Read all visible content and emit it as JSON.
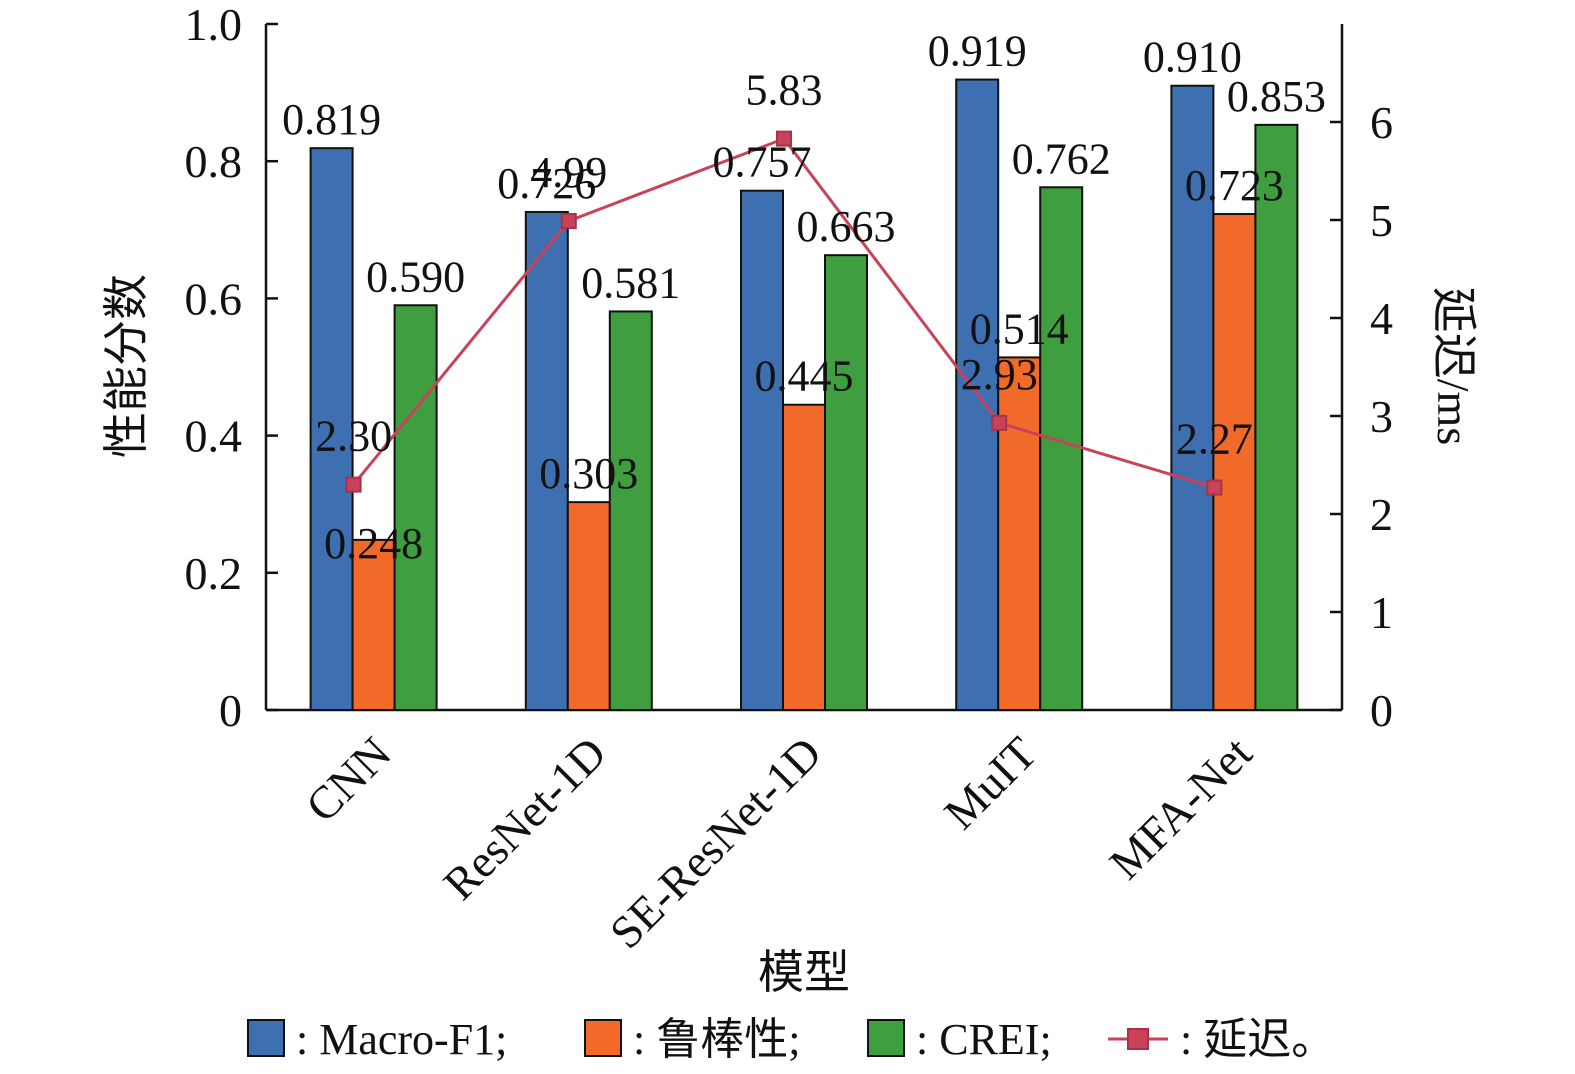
{
  "chart_data": {
    "type": "bar",
    "categories": [
      "CNN",
      "ResNet-1D",
      "SE-ResNet-1D",
      "MuIT",
      "MFA-Net"
    ],
    "series": [
      {
        "name": "Macro-F1",
        "axis": "left",
        "type": "bar",
        "color": "#3e6fb0",
        "values": [
          0.819,
          0.726,
          0.757,
          0.919,
          0.91
        ],
        "labels": [
          "0.819",
          "0.726",
          "0.757",
          "0.919",
          "0.910"
        ]
      },
      {
        "name": "鲁棒性",
        "axis": "left",
        "type": "bar",
        "color": "#f26a29",
        "values": [
          0.248,
          0.303,
          0.445,
          0.514,
          0.723
        ],
        "labels": [
          "0.248",
          "0.303",
          "0.445",
          "0.514",
          "0.723"
        ]
      },
      {
        "name": "CREI",
        "axis": "left",
        "type": "bar",
        "color": "#3f9e3f",
        "values": [
          0.59,
          0.581,
          0.663,
          0.762,
          0.853
        ],
        "labels": [
          "0.590",
          "0.581",
          "0.663",
          "0.762",
          "0.853"
        ]
      },
      {
        "name": "延迟",
        "axis": "right",
        "type": "line",
        "marker": "square",
        "color": "#c94259",
        "values": [
          2.3,
          4.99,
          5.83,
          2.93,
          2.27
        ],
        "labels": [
          "2.30",
          "4.99",
          "5.83",
          "2.93",
          "2.27"
        ]
      }
    ],
    "xlabel": "模型",
    "ylabel": "性能分数",
    "ylabel_right": "延迟/ms",
    "ylim": [
      0,
      1.0
    ],
    "ylim_right": [
      0,
      7
    ],
    "yticks": [
      "0",
      "0.2",
      "0.4",
      "0.6",
      "0.8",
      "1.0"
    ],
    "yticks_right": [
      "0",
      "1",
      "2",
      "3",
      "4",
      "5",
      "6"
    ],
    "legend": {
      "position": "bottom",
      "items": [
        ": Macro-F1;",
        ": 鲁棒性;",
        ": CREI;",
        ": 延迟。"
      ]
    }
  }
}
